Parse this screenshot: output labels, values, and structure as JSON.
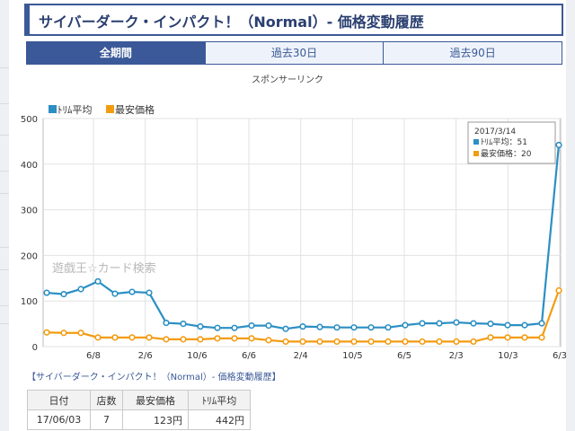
{
  "title": "サイバーダーク・インパクト！（Normal）- 価格変動履歴",
  "tabs": [
    {
      "label": "全期間",
      "active": true
    },
    {
      "label": "過去30日",
      "active": false
    },
    {
      "label": "過去90日",
      "active": false
    }
  ],
  "sponsor_text": "スポンサーリンク",
  "watermark": "遊戯王☆カード検索",
  "tooltip": {
    "date": "2017/3/14",
    "trim_label": "ﾄﾘﾑ平均：51",
    "min_label": "最安価格：20"
  },
  "caption": "【サイバーダーク・インパクト！（Normal）- 価格変動履歴】",
  "table": {
    "headers": [
      "日付",
      "店数",
      "最安価格",
      "ﾄﾘﾑ平均"
    ],
    "rows": [
      [
        "17/06/03",
        "7",
        "123円",
        "442円"
      ]
    ]
  },
  "chart_data": {
    "type": "line",
    "ylim": [
      0,
      500
    ],
    "yticks": [
      "0",
      "100",
      "200",
      "300",
      "400",
      "500"
    ],
    "xtick_labels": [
      "6/8",
      "2/6",
      "10/6",
      "6/6",
      "2/4",
      "10/5",
      "6/5",
      "2/3",
      "10/3",
      "6/3"
    ],
    "legend": [
      "ﾄﾘﾑ平均",
      "最安価格"
    ],
    "legend_position": "top-left",
    "grid": true,
    "colors": {
      "trim": "#2b8fc4",
      "min": "#f39c12"
    },
    "series": [
      {
        "name": "ﾄﾘﾑ平均",
        "values": [
          118,
          115,
          126,
          143,
          116,
          120,
          118,
          52,
          50,
          44,
          41,
          41,
          46,
          46,
          39,
          44,
          43,
          42,
          42,
          42,
          42,
          47,
          51,
          51,
          53,
          51,
          50,
          47,
          47,
          51,
          442
        ]
      },
      {
        "name": "最安価格",
        "values": [
          31,
          30,
          30,
          20,
          20,
          20,
          20,
          16,
          16,
          16,
          18,
          18,
          18,
          14,
          11,
          11,
          11,
          11,
          11,
          11,
          11,
          11,
          11,
          11,
          11,
          11,
          20,
          20,
          20,
          20,
          123
        ]
      }
    ]
  }
}
